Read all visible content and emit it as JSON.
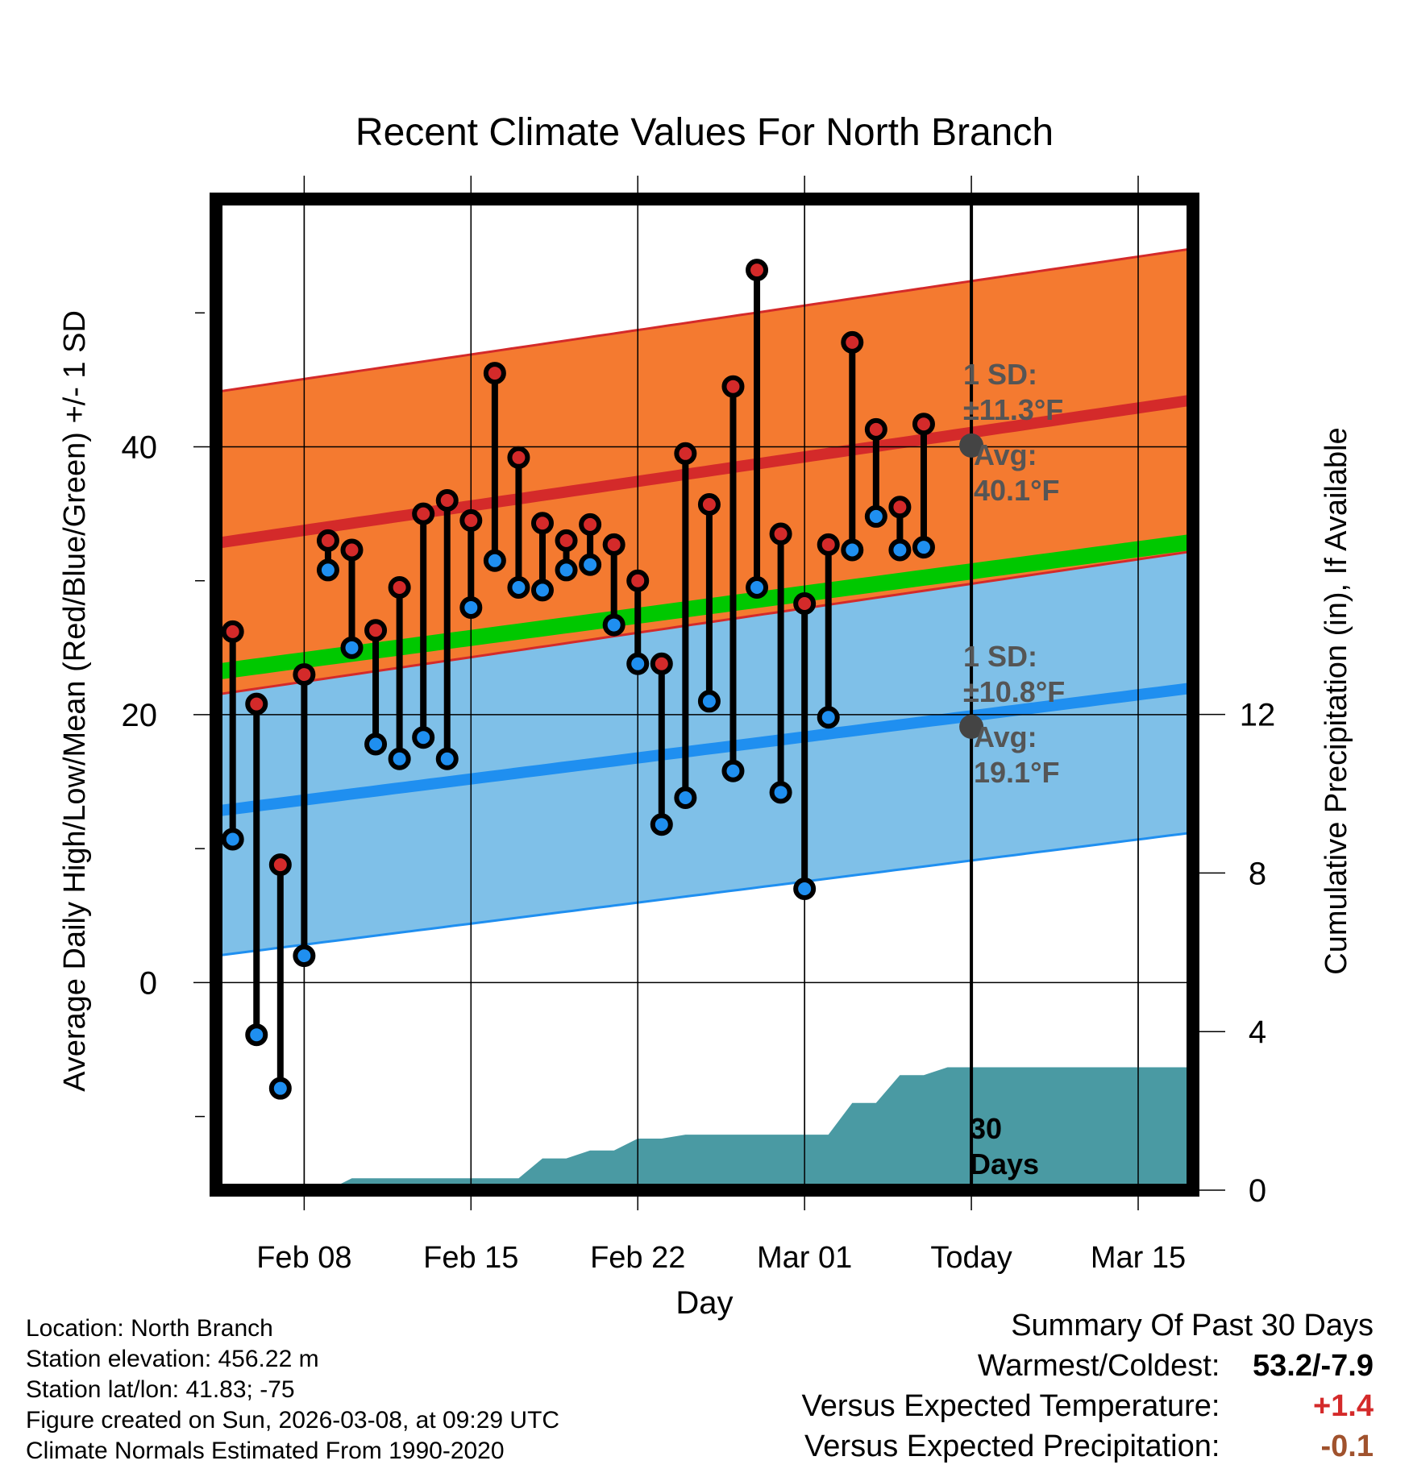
{
  "chart_data": {
    "type": "line",
    "title": "Recent Climate Values For North Branch",
    "xlabel": "Day",
    "ylabel": "Average Daily High/Low/Mean (Red/Blue/Green) +/- 1 SD",
    "y2label": "Cumulative Precipitation (in), If Available",
    "x_tick_labels": [
      "Feb 08",
      "Feb 15",
      "Feb 22",
      "Mar 01",
      "Today",
      "Mar 15"
    ],
    "x_tick_days": [
      8,
      15,
      22,
      29,
      36,
      43
    ],
    "y_ticks": [
      0,
      20,
      40
    ],
    "y2_ticks": [
      0,
      4,
      8,
      12
    ],
    "ylim": [
      -15.5,
      58.5
    ],
    "y2lim": [
      0,
      25
    ],
    "xlim": [
      4.3,
      45.3
    ],
    "today_day": 36,
    "days": [
      5,
      6,
      7,
      8,
      9,
      10,
      11,
      12,
      13,
      14,
      15,
      16,
      17,
      18,
      19,
      20,
      21,
      22,
      23,
      24,
      25,
      26,
      27,
      28,
      29,
      30,
      31,
      32,
      33,
      34,
      35
    ],
    "daily_high": [
      26.2,
      20.8,
      8.8,
      23.0,
      33.0,
      32.3,
      26.3,
      29.5,
      35.0,
      36.0,
      34.5,
      45.5,
      39.2,
      34.3,
      33.0,
      34.2,
      32.7,
      30.0,
      23.8,
      39.5,
      35.7,
      44.5,
      53.2,
      33.5,
      28.3,
      32.7,
      47.8,
      41.3,
      35.5,
      41.7,
      null
    ],
    "daily_low": [
      10.7,
      -3.9,
      -7.9,
      2.0,
      30.8,
      25.0,
      17.8,
      16.7,
      18.3,
      16.7,
      28.0,
      31.5,
      29.5,
      29.3,
      30.8,
      31.2,
      26.7,
      23.8,
      11.8,
      13.8,
      21.0,
      15.8,
      29.5,
      14.2,
      7.0,
      19.8,
      32.3,
      34.8,
      32.3,
      32.5,
      null
    ],
    "normal_high": {
      "start_day": 4.3,
      "end_day": 45.3,
      "start": 32.8,
      "end": 43.5
    },
    "normal_low": {
      "start_day": 4.3,
      "end_day": 45.3,
      "start": 12.8,
      "end": 22.0
    },
    "normal_mean": {
      "start_day": 4.3,
      "end_day": 45.3,
      "start": 23.2,
      "end": 32.9
    },
    "sd_high": 11.3,
    "sd_low": 10.8,
    "precip_cumulative": [
      0,
      0,
      0,
      0,
      0,
      0,
      0.3,
      0.3,
      0.3,
      0.3,
      0.3,
      0.3,
      0.3,
      0.3,
      0.8,
      0.8,
      1.0,
      1.0,
      1.3,
      1.3,
      1.4,
      1.4,
      1.4,
      1.4,
      1.4,
      1.4,
      1.4,
      2.2,
      2.2,
      2.9,
      2.9,
      3.1,
      3.1
    ],
    "precip_days": [
      4.3,
      5,
      6,
      7,
      8,
      9,
      10,
      11,
      12,
      13,
      14,
      15,
      16,
      17,
      18,
      19,
      20,
      21,
      22,
      23,
      24,
      25,
      26,
      27,
      28,
      29,
      30,
      31,
      32,
      33,
      34,
      35,
      36
    ],
    "precip_final": 3.1,
    "annotations": {
      "high_sd": [
        "1 SD:",
        "±11.3°F"
      ],
      "high_avg": [
        "Avg:",
        "40.1°F"
      ],
      "low_sd": [
        "1 SD:",
        "±10.8°F"
      ],
      "low_avg": [
        "Avg:",
        "19.1°F"
      ],
      "high_avg_value": 40.1,
      "low_avg_value": 19.1,
      "days_window": [
        "30",
        "Days"
      ]
    },
    "colors": {
      "high_band": "#f47a30",
      "high_line": "#d42a2a",
      "low_band": "#7fc0e8",
      "low_line": "#1f8ff0",
      "mean_line": "#00c800",
      "precip": "#4a9aa3",
      "annotation": "#555555",
      "high_dot": "#d42a2a",
      "low_dot": "#1f8ff0"
    }
  },
  "info": {
    "location": "Location: North Branch",
    "elevation": "Station elevation: 456.22 m",
    "latlon": "Station lat/lon: 41.83; -75",
    "created": "Figure created on Sun, 2026-03-08, at 09:29 UTC",
    "normals": "Climate Normals Estimated From 1990-2020"
  },
  "summary": {
    "title": "Summary Of Past 30 Days",
    "warmest_label": "Warmest/Coldest:",
    "warmest_value": "53.2/-7.9",
    "temp_label": "Versus Expected Temperature:",
    "temp_value": "+1.4",
    "temp_color": "#d42a2a",
    "precip_label": "Versus Expected Precipitation:",
    "precip_value": "-0.1",
    "precip_color": "#a0522d"
  }
}
